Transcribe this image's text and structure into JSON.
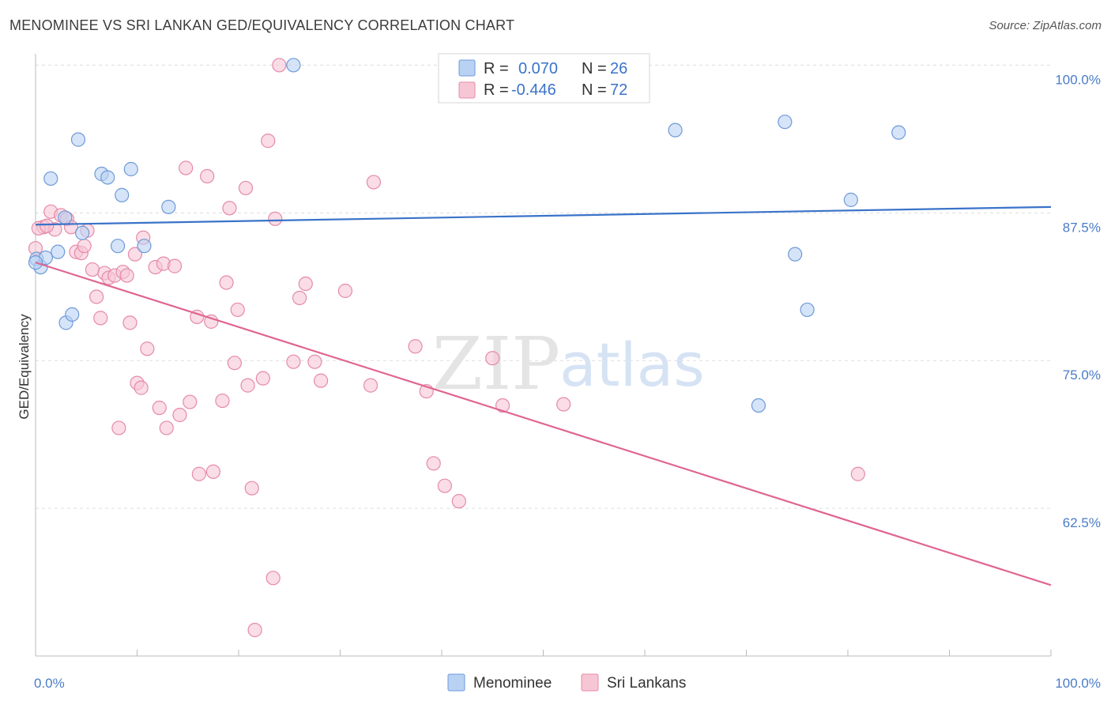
{
  "title": "MENOMINEE VS SRI LANKAN GED/EQUIVALENCY CORRELATION CHART",
  "source": "Source: ZipAtlas.com",
  "watermark": {
    "zip": "ZIP",
    "atlas": "atlas"
  },
  "legend": {
    "rows": [
      {
        "r_label": "R =",
        "r_value": "0.070",
        "n_label": "N =",
        "n_value": "26"
      },
      {
        "r_label": "R =",
        "r_value": "-0.446",
        "n_label": "N =",
        "n_value": "72"
      }
    ]
  },
  "bottom_legend": [
    {
      "label": "Menominee"
    },
    {
      "label": "Sri Lankans"
    }
  ],
  "colors": {
    "menominee_fill": "#b9d2f3",
    "menominee_stroke": "#6f9ad8",
    "menominee_line": "#3a73c9",
    "srilankan_fill": "#f7c6d5",
    "srilankan_stroke": "#e58aa9",
    "srilankan_line": "#e06592",
    "tick_label": "#4a7cc9",
    "grid": "#dddddd"
  },
  "chart_data": {
    "type": "scatter",
    "xlabel": "",
    "ylabel": "GED/Equivalency",
    "xlim": [
      0,
      100
    ],
    "ylim": [
      50,
      101.5
    ],
    "x_tick_labels": [
      {
        "value": 0,
        "label": "0.0%"
      },
      {
        "value": 100,
        "label": "100.0%"
      }
    ],
    "y_tick_labels": [
      {
        "value": 100,
        "label": "100.0%"
      },
      {
        "value": 87.5,
        "label": "87.5%"
      },
      {
        "value": 75,
        "label": "75.0%"
      },
      {
        "value": 62.5,
        "label": "62.5%"
      }
    ],
    "series": [
      {
        "name": "Menominee",
        "points": [
          [
            0.1,
            83.6
          ],
          [
            0.5,
            82.9
          ],
          [
            1.0,
            83.7
          ],
          [
            1.5,
            90.4
          ],
          [
            2.2,
            84.2
          ],
          [
            2.9,
            87.1
          ],
          [
            3.0,
            78.2
          ],
          [
            3.6,
            78.9
          ],
          [
            4.2,
            93.7
          ],
          [
            4.6,
            85.8
          ],
          [
            6.5,
            90.8
          ],
          [
            7.1,
            90.5
          ],
          [
            8.1,
            84.7
          ],
          [
            8.5,
            89.0
          ],
          [
            9.4,
            91.2
          ],
          [
            10.7,
            84.7
          ],
          [
            13.1,
            88.0
          ],
          [
            25.4,
            100.0
          ],
          [
            63.0,
            94.5
          ],
          [
            73.8,
            95.2
          ],
          [
            74.8,
            84.0
          ],
          [
            76.0,
            79.3
          ],
          [
            71.2,
            71.2
          ],
          [
            80.3,
            88.6
          ],
          [
            85.0,
            94.3
          ],
          [
            0.0,
            83.3
          ]
        ],
        "trend": [
          [
            0,
            86.5
          ],
          [
            100,
            88.0
          ]
        ]
      },
      {
        "name": "Sri Lankans",
        "points": [
          [
            0.0,
            84.5
          ],
          [
            0.8,
            86.3
          ],
          [
            1.5,
            87.6
          ],
          [
            1.9,
            86.1
          ],
          [
            2.5,
            87.3
          ],
          [
            3.1,
            87.0
          ],
          [
            3.5,
            86.3
          ],
          [
            4.0,
            84.2
          ],
          [
            4.5,
            84.1
          ],
          [
            4.8,
            84.7
          ],
          [
            5.1,
            86.0
          ],
          [
            5.6,
            82.7
          ],
          [
            6.0,
            80.4
          ],
          [
            6.4,
            78.6
          ],
          [
            6.8,
            82.4
          ],
          [
            7.2,
            82.0
          ],
          [
            7.8,
            82.2
          ],
          [
            8.2,
            69.3
          ],
          [
            8.6,
            82.5
          ],
          [
            9.0,
            82.2
          ],
          [
            9.3,
            78.2
          ],
          [
            9.8,
            84.0
          ],
          [
            10.0,
            73.1
          ],
          [
            10.4,
            72.7
          ],
          [
            10.6,
            85.4
          ],
          [
            11.0,
            76.0
          ],
          [
            11.8,
            82.9
          ],
          [
            12.2,
            71.0
          ],
          [
            12.6,
            83.2
          ],
          [
            12.9,
            69.3
          ],
          [
            13.7,
            83.0
          ],
          [
            14.2,
            70.4
          ],
          [
            14.8,
            91.3
          ],
          [
            15.2,
            71.5
          ],
          [
            15.9,
            78.7
          ],
          [
            16.1,
            65.4
          ],
          [
            16.9,
            90.6
          ],
          [
            17.3,
            78.3
          ],
          [
            17.5,
            65.6
          ],
          [
            18.4,
            71.6
          ],
          [
            18.8,
            81.6
          ],
          [
            19.1,
            87.9
          ],
          [
            19.6,
            74.8
          ],
          [
            19.9,
            79.3
          ],
          [
            20.7,
            89.6
          ],
          [
            20.9,
            72.9
          ],
          [
            21.3,
            64.2
          ],
          [
            21.6,
            52.2
          ],
          [
            22.4,
            73.5
          ],
          [
            22.9,
            93.6
          ],
          [
            23.4,
            56.6
          ],
          [
            23.6,
            87.0
          ],
          [
            24.0,
            100.0
          ],
          [
            25.4,
            74.9
          ],
          [
            26.0,
            80.3
          ],
          [
            26.6,
            81.5
          ],
          [
            27.5,
            74.9
          ],
          [
            28.1,
            73.3
          ],
          [
            30.5,
            80.9
          ],
          [
            33.0,
            72.9
          ],
          [
            33.3,
            90.1
          ],
          [
            37.4,
            76.2
          ],
          [
            38.5,
            72.4
          ],
          [
            39.2,
            66.3
          ],
          [
            40.3,
            64.4
          ],
          [
            41.7,
            63.1
          ],
          [
            45.0,
            75.2
          ],
          [
            46.0,
            71.2
          ],
          [
            52.0,
            71.3
          ],
          [
            81.0,
            65.4
          ],
          [
            0.3,
            86.2
          ],
          [
            1.1,
            86.4
          ]
        ],
        "trend": [
          [
            0,
            83.3
          ],
          [
            100,
            56.0
          ]
        ]
      }
    ],
    "grid": true,
    "legend_position": "top-center"
  }
}
